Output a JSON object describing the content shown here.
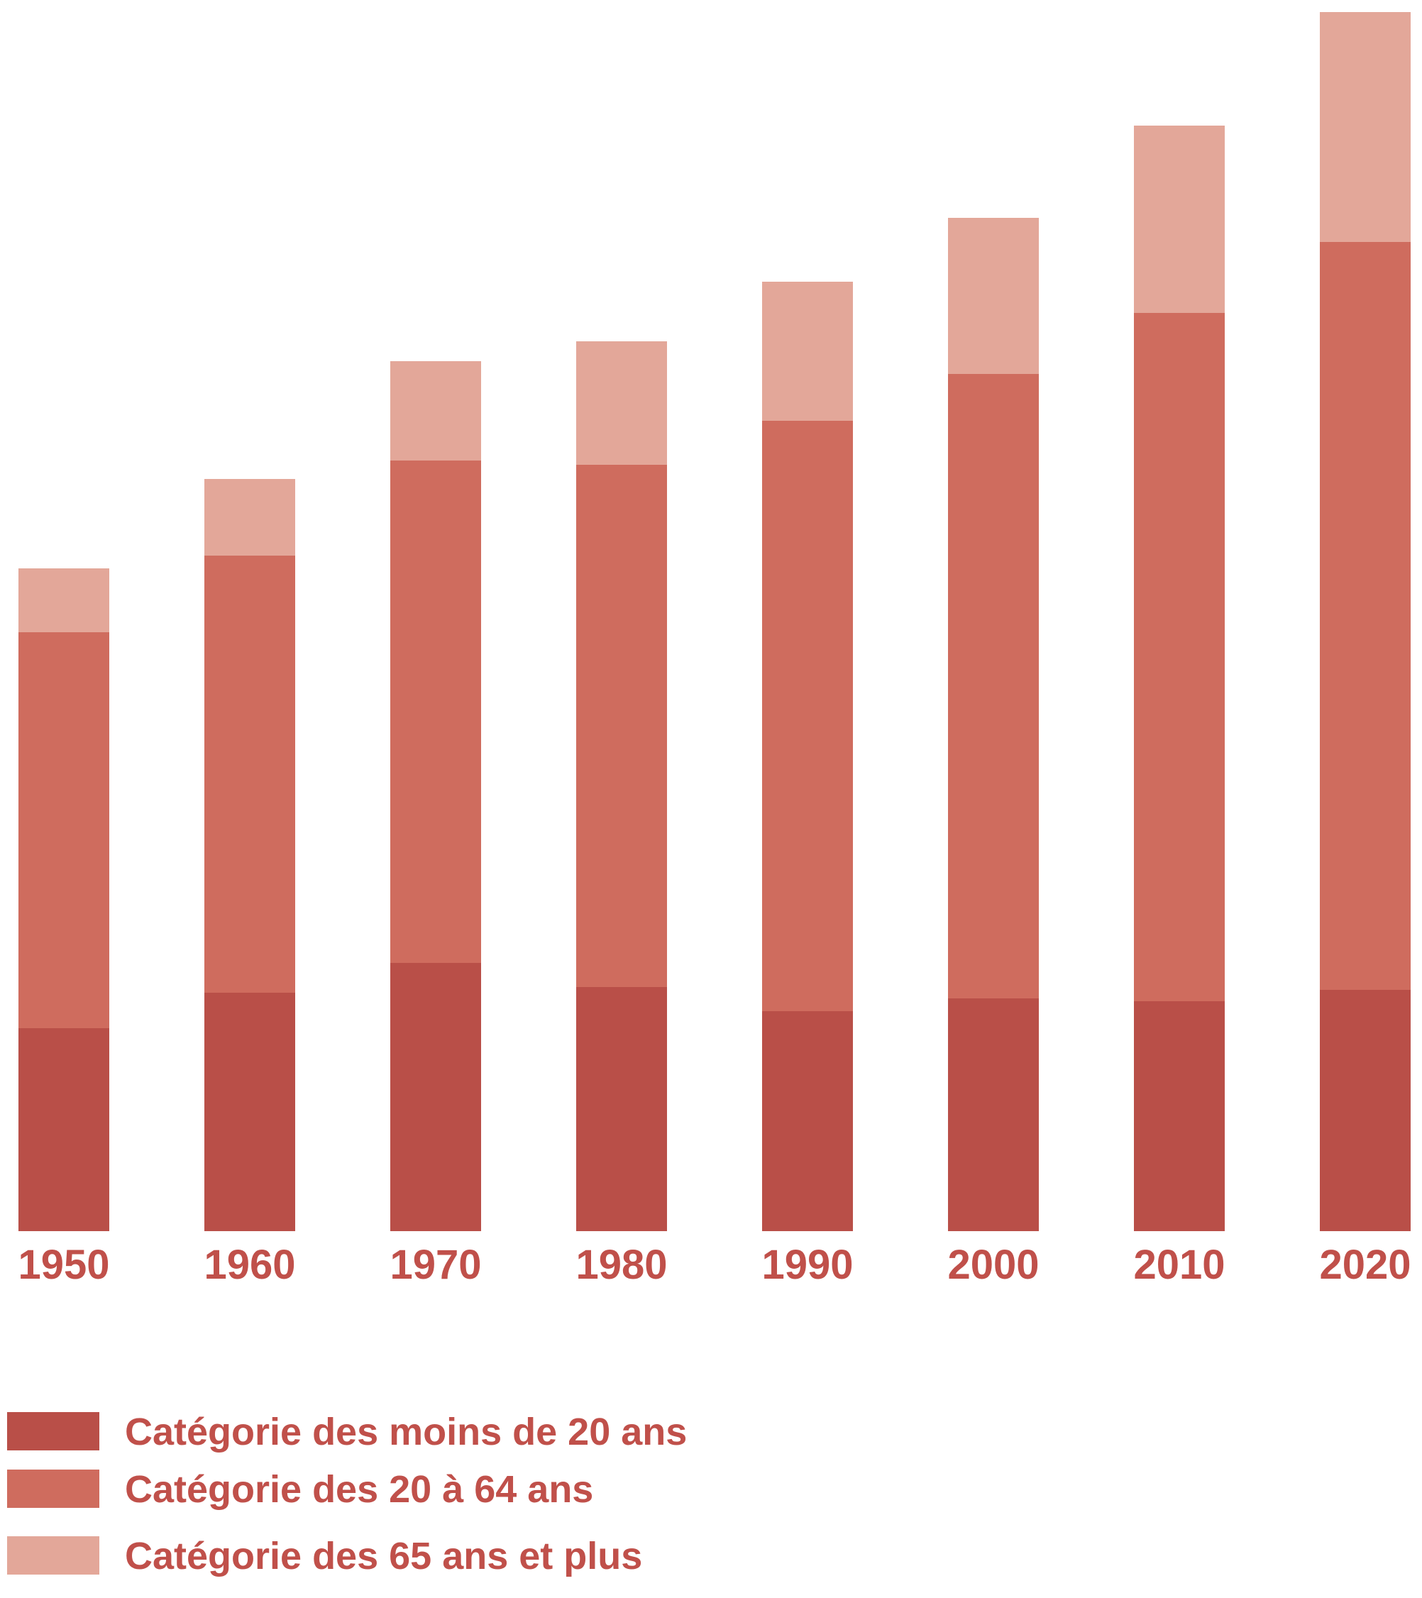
{
  "chart_data": {
    "type": "bar",
    "stacked": true,
    "title": "",
    "xlabel": "",
    "ylabel": "",
    "categories": [
      "1950",
      "1960",
      "1970",
      "1980",
      "1990",
      "2000",
      "2010",
      "2020"
    ],
    "series": [
      {
        "name": "Catégorie des moins de 20 ans",
        "color": "#b94f48",
        "values": [
          1.43,
          1.68,
          1.89,
          1.72,
          1.55,
          1.64,
          1.62,
          1.7
        ]
      },
      {
        "name": "Catégorie des 20 à 64 ans",
        "color": "#cf6c5e",
        "values": [
          2.79,
          3.08,
          3.54,
          3.68,
          4.16,
          4.4,
          4.85,
          5.27
        ]
      },
      {
        "name": "Catégorie des 65 ans et plus",
        "color": "#e3a799",
        "values": [
          0.45,
          0.54,
          0.7,
          0.87,
          0.98,
          1.1,
          1.32,
          1.62
        ]
      }
    ],
    "ylim": [
      0,
      8.6
    ],
    "y_axis_visible": false,
    "grid": false,
    "legend": {
      "placement": "bottom-left",
      "entries": [
        {
          "label": "Catégorie des moins de 20 ans",
          "color": "#b94f48"
        },
        {
          "label": "Catégorie des 20 à 64 ans",
          "color": "#cf6c5e"
        },
        {
          "label": "Catégorie des 65 ans et plus",
          "color": "#e3a799"
        }
      ]
    },
    "tick_label_color": "#c0504a"
  }
}
